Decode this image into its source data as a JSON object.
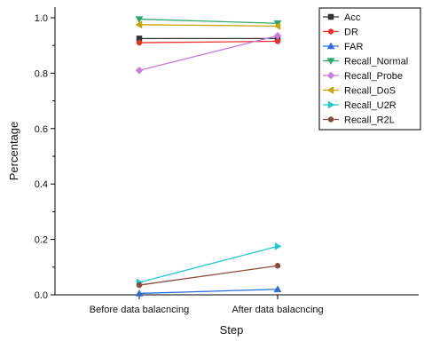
{
  "chart_data": {
    "type": "line",
    "title": "",
    "xlabel": "Step",
    "ylabel": "Percentage",
    "categories": [
      "Before data balacncing",
      "After data balacncing"
    ],
    "ylim": [
      0,
      1.0
    ],
    "yticks": [
      "0.0",
      "0.2",
      "0.4",
      "0.6",
      "0.8",
      "1.0"
    ],
    "grid": false,
    "legend_position": "top-right",
    "series": [
      {
        "name": "Acc",
        "values": [
          0.925,
          0.925
        ],
        "color": "#333333",
        "marker": "square"
      },
      {
        "name": "DR",
        "values": [
          0.91,
          0.915
        ],
        "color": "#e8332c",
        "marker": "circle"
      },
      {
        "name": "FAR",
        "values": [
          0.005,
          0.02
        ],
        "color": "#2a6fd6",
        "marker": "triangle-up"
      },
      {
        "name": "Recall_Normal",
        "values": [
          0.995,
          0.98
        ],
        "color": "#2ea86a",
        "marker": "triangle-down"
      },
      {
        "name": "Recall_Probe",
        "values": [
          0.81,
          0.935
        ],
        "color": "#c77ddc",
        "marker": "diamond"
      },
      {
        "name": "Recall_DoS",
        "values": [
          0.975,
          0.97
        ],
        "color": "#c9a300",
        "marker": "triangle-left"
      },
      {
        "name": "Recall_U2R",
        "values": [
          0.045,
          0.175
        ],
        "color": "#22c7d6",
        "marker": "triangle-right"
      },
      {
        "name": "Recall_R2L",
        "values": [
          0.035,
          0.105
        ],
        "color": "#8b4a3e",
        "marker": "circle"
      }
    ]
  }
}
